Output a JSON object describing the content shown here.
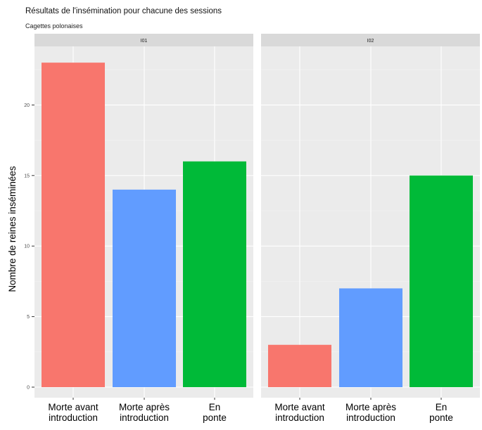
{
  "chart_data": {
    "type": "bar",
    "title": "Résultats de l'insémination pour chacune des sessions",
    "subtitle": "Cagettes polonaises",
    "ylabel": "Nombre de reines inséminées",
    "xlabel": "",
    "ylim": [
      0,
      24
    ],
    "yticks": [
      0,
      5,
      10,
      15,
      20
    ],
    "grid": true,
    "categories": [
      "Morte avant introduction",
      "Morte après introduction",
      "En ponte"
    ],
    "category_lines": [
      [
        "Morte avant",
        "introduction"
      ],
      [
        "Morte après",
        "introduction"
      ],
      [
        "En",
        "ponte"
      ]
    ],
    "colors": [
      "#F8766D",
      "#619CFF",
      "#00BA38"
    ],
    "panels": [
      {
        "name": "I01",
        "values": [
          23,
          14,
          16
        ]
      },
      {
        "name": "I02",
        "values": [
          3,
          7,
          15
        ]
      }
    ]
  }
}
